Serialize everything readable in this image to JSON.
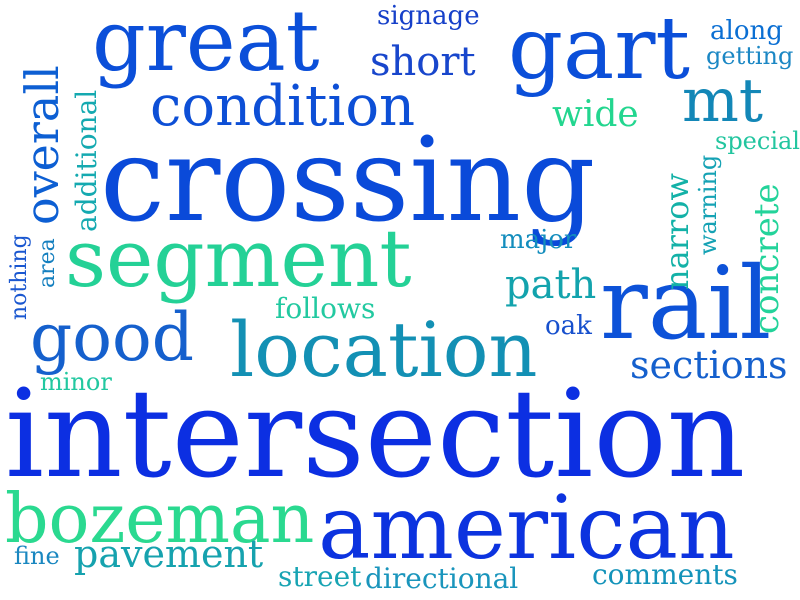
{
  "words": [
    {
      "text": "great",
      "color": "#0b4fd9"
    },
    {
      "text": "gart",
      "color": "#0b4fd9"
    },
    {
      "text": "signage",
      "color": "#1640c9"
    },
    {
      "text": "along",
      "color": "#0b6fd3"
    },
    {
      "text": "getting",
      "color": "#1b87c4"
    },
    {
      "text": "short",
      "color": "#1846cc"
    },
    {
      "text": "overall",
      "color": "#0d5fd3"
    },
    {
      "text": "additional",
      "color": "#14a9b0"
    },
    {
      "text": "condition",
      "color": "#0d4fd6"
    },
    {
      "text": "mt",
      "color": "#1387b7"
    },
    {
      "text": "wide",
      "color": "#23d68f"
    },
    {
      "text": "special",
      "color": "#22c59f"
    },
    {
      "text": "crossing",
      "color": "#0a4ad9"
    },
    {
      "text": "narrow",
      "color": "#13b1a7"
    },
    {
      "text": "warning",
      "color": "#15a2b4"
    },
    {
      "text": "concrete",
      "color": "#23d39a"
    },
    {
      "text": "segment",
      "color": "#24d196"
    },
    {
      "text": "major",
      "color": "#138dbd"
    },
    {
      "text": "nothing",
      "color": "#1a57d0"
    },
    {
      "text": "area",
      "color": "#147fbf"
    },
    {
      "text": "path",
      "color": "#13a3ad"
    },
    {
      "text": "rail",
      "color": "#0d52d8"
    },
    {
      "text": "follows",
      "color": "#22c9a0"
    },
    {
      "text": "good",
      "color": "#1560cd"
    },
    {
      "text": "location",
      "color": "#1390b4"
    },
    {
      "text": "oak",
      "color": "#1750cd"
    },
    {
      "text": "minor",
      "color": "#22c8a0"
    },
    {
      "text": "sections",
      "color": "#1560cd"
    },
    {
      "text": "intersection",
      "color": "#0c2fe2"
    },
    {
      "text": "bozeman",
      "color": "#2ad990"
    },
    {
      "text": "american",
      "color": "#0c33df"
    },
    {
      "text": "fine",
      "color": "#1a87c0"
    },
    {
      "text": "pavement",
      "color": "#16a2ae"
    },
    {
      "text": "street",
      "color": "#18a4b3"
    },
    {
      "text": "directional",
      "color": "#1a95bc"
    },
    {
      "text": "comments",
      "color": "#1493ba"
    }
  ]
}
